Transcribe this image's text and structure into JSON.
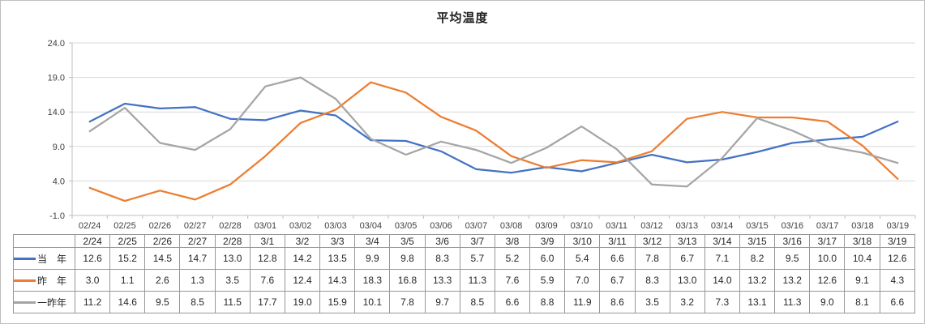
{
  "chart_data": {
    "type": "line",
    "title": "平均温度",
    "x_labels": [
      "02/24",
      "02/25",
      "02/26",
      "02/27",
      "02/28",
      "03/01",
      "03/02",
      "03/03",
      "03/04",
      "03/05",
      "03/06",
      "03/07",
      "03/08",
      "03/09",
      "03/10",
      "03/11",
      "03/12",
      "03/13",
      "03/14",
      "03/15",
      "03/16",
      "03/17",
      "03/18",
      "03/19"
    ],
    "ylim": [
      -1.0,
      24.0
    ],
    "ytick_labels": [
      "24.0",
      "19.0",
      "14.0",
      "9.0",
      "4.0",
      "-1.0"
    ],
    "ytick_values": [
      24.0,
      19.0,
      14.0,
      9.0,
      4.0,
      -1.0
    ],
    "grid": true,
    "legend_position": "table-left-column",
    "series": [
      {
        "name": "当年",
        "display_name": "当　年",
        "semantic": "current-year",
        "color": "#4472C4",
        "values": [
          12.6,
          15.2,
          14.5,
          14.7,
          13.0,
          12.8,
          14.2,
          13.5,
          9.9,
          9.8,
          8.3,
          5.7,
          5.2,
          6.0,
          5.4,
          6.6,
          7.8,
          6.7,
          7.1,
          8.2,
          9.5,
          10.0,
          10.4,
          12.6
        ]
      },
      {
        "name": "昨年",
        "display_name": "昨　年",
        "semantic": "last-year",
        "color": "#ED7D31",
        "values": [
          3.0,
          1.1,
          2.6,
          1.3,
          3.5,
          7.6,
          12.4,
          14.3,
          18.3,
          16.8,
          13.3,
          11.3,
          7.6,
          5.9,
          7.0,
          6.7,
          8.3,
          13.0,
          14.0,
          13.2,
          13.2,
          12.6,
          9.1,
          4.3
        ]
      },
      {
        "name": "一昨年",
        "display_name": "一昨年",
        "semantic": "two-years-ago",
        "color": "#A5A5A5",
        "values": [
          11.2,
          14.6,
          9.5,
          8.5,
          11.5,
          17.7,
          19.0,
          15.9,
          10.1,
          7.8,
          9.7,
          8.5,
          6.6,
          8.8,
          11.9,
          8.6,
          3.5,
          3.2,
          7.3,
          13.1,
          11.3,
          9.0,
          8.1,
          6.6
        ]
      }
    ]
  },
  "table": {
    "date_labels": [
      "2/24",
      "2/25",
      "2/26",
      "2/27",
      "2/28",
      "3/1",
      "3/2",
      "3/3",
      "3/4",
      "3/5",
      "3/6",
      "3/7",
      "3/8",
      "3/9",
      "3/10",
      "3/11",
      "3/12",
      "3/13",
      "3/14",
      "3/15",
      "3/16",
      "3/17",
      "3/18",
      "3/19"
    ]
  },
  "colors": {
    "gridline": "#D9D9D9",
    "axis": "#BFBFBF",
    "table_border": "#969696",
    "tick_text": "#404040"
  }
}
